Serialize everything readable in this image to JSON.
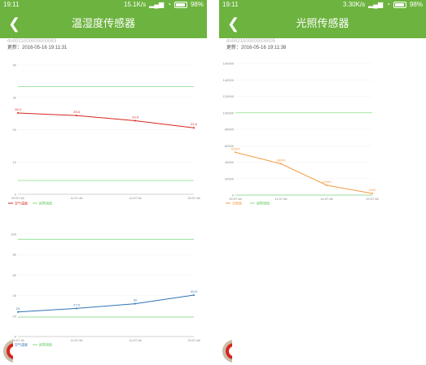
{
  "status_left": {
    "time": "19:11",
    "speed": "15.1K/s",
    "battery": "98%"
  },
  "status_right": {
    "time": "19:11",
    "speed": "3.30K/s",
    "battery": "98%"
  },
  "left_screen": {
    "title": "温湿度传感器",
    "device_id": "dn0021000000000063",
    "updated": "更新：2016-05-16 19:11:31"
  },
  "right_screen": {
    "title": "光照传感器",
    "device_id": "dn0021000000000005",
    "updated": "更新：2016-05-16 19:11:38"
  },
  "chart_data": [
    {
      "type": "line",
      "x": [
        "09:07:46",
        "11:07:46",
        "14:07:46",
        "19:07:46"
      ],
      "y_ticks": [
        "40",
        "30",
        "20",
        "10",
        "0"
      ],
      "series": [
        {
          "name": "空气温度",
          "values": [
            26.4,
            25.6,
            23.9,
            21.6
          ],
          "color": "#d7261e"
        }
      ],
      "threshold": {
        "name": "报警阈值",
        "upper": 35,
        "lower": 4.5,
        "color": "#88dd88"
      },
      "ylim": [
        0,
        42
      ],
      "point_labels": [
        "26.4",
        "25.6",
        "23.9",
        "21.6"
      ]
    },
    {
      "type": "line",
      "x": [
        "09:07:46",
        "11:07:46",
        "14:07:46",
        "19:07:46"
      ],
      "y_ticks": [
        "100",
        "80",
        "60",
        "40",
        "20",
        "0"
      ],
      "series": [
        {
          "name": "空气湿度",
          "values": [
            24,
            27.5,
            32,
            40.5
          ],
          "color": "#2f73b7"
        }
      ],
      "threshold": {
        "name": "报警阈值",
        "upper": 95,
        "lower": 19,
        "color": "#88dd88"
      },
      "ylim": [
        0,
        100
      ],
      "point_labels": [
        "24",
        "27.5",
        "32",
        "40.5"
      ]
    },
    {
      "type": "line",
      "x": [
        "09:07:46",
        "11:07:46",
        "14:07:46",
        "19:07:46"
      ],
      "y_ticks": [
        "160000",
        "140000",
        "120000",
        "100000",
        "80000",
        "60000",
        "40000",
        "20000",
        "0"
      ],
      "series": [
        {
          "name": "光照度",
          "values": [
            52000,
            38000,
            12000,
            2000
          ],
          "color": "#f39c43"
        }
      ],
      "threshold": {
        "name": "报警阈值",
        "upper": 100000,
        "lower": 0,
        "color": "#88dd88"
      },
      "ylim": [
        0,
        160000
      ],
      "point_labels": [
        "52000",
        "38000",
        "12000",
        "2000"
      ]
    }
  ],
  "icons": {
    "back": "chevron-left-icon",
    "wifi": "wifi-icon",
    "signal": "signal-icon",
    "battery": "battery-icon",
    "fab": "float-menu-icon"
  }
}
